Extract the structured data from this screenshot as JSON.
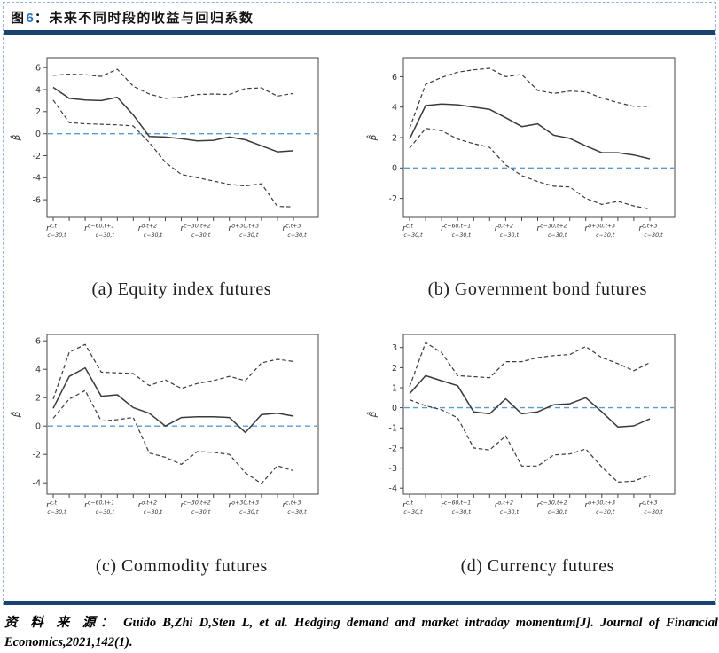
{
  "header": {
    "figure_label": "图",
    "figure_number": "6",
    "colon": "：",
    "title": "未来不同时段的收益与回归系数"
  },
  "source": {
    "label": "资 料 来 源：",
    "citation": "Guido B,Zhi D,Sten L, et al. Hedging demand and market intraday momentum[J]. Journal of Financial Economics,2021,142(1)."
  },
  "colors": {
    "accent_navy": "#1a4270",
    "figure_number_blue": "#2e74b5",
    "border_dashed_blue": "#8eb4e3",
    "zero_line_blue": "#5b9bd5",
    "series_line": "#3a3a3a"
  },
  "chart_data": [
    {
      "type": "line",
      "caption": "(a) Equity index futures",
      "ylabel": "β̂",
      "ylim": [
        -7.6,
        6.9
      ],
      "yticks": [
        -6,
        -4,
        -2,
        0,
        2,
        4,
        6
      ],
      "zero_line": 0,
      "n_points": 16,
      "xlabel_ticks": [
        0,
        3,
        6,
        9,
        12,
        15
      ],
      "xlabels": [
        {
          "base": "r",
          "sup": "c,t",
          "sub": "c−30,t"
        },
        {
          "base": "r",
          "sup": "c−60,t+1",
          "sub": "c−30,t"
        },
        {
          "base": "r",
          "sup": "o,t+2",
          "sub": "c−30,t"
        },
        {
          "base": "r",
          "sup": "c−30,t+2",
          "sub": "c−30,t"
        },
        {
          "base": "r",
          "sup": "o+30,t+3",
          "sub": "c−30,t"
        },
        {
          "base": "r",
          "sup": "c,t+3",
          "sub": "c−30,t"
        }
      ],
      "series": [
        {
          "name": "beta-estimate",
          "style": "solid",
          "values": [
            4.2,
            3.2,
            3.05,
            3.0,
            3.3,
            1.7,
            -0.25,
            -0.3,
            -0.45,
            -0.65,
            -0.6,
            -0.3,
            -0.55,
            -1.1,
            -1.65,
            -1.55
          ]
        },
        {
          "name": "upper-confidence-band",
          "style": "dashed",
          "values": [
            5.3,
            5.4,
            5.35,
            5.2,
            5.85,
            4.3,
            3.6,
            3.2,
            3.3,
            3.55,
            3.6,
            3.55,
            4.1,
            4.15,
            3.4,
            3.65
          ]
        },
        {
          "name": "lower-confidence-band",
          "style": "dashed",
          "values": [
            3.05,
            1.0,
            0.9,
            0.85,
            0.8,
            0.7,
            -0.8,
            -2.6,
            -3.7,
            -4.0,
            -4.3,
            -4.6,
            -4.75,
            -4.55,
            -6.6,
            -6.65
          ]
        }
      ]
    },
    {
      "type": "line",
      "caption": "(b) Government bond futures",
      "ylabel": "β̂",
      "ylim": [
        -3.25,
        7.25
      ],
      "yticks": [
        -2,
        0,
        2,
        4,
        6
      ],
      "zero_line": 0,
      "n_points": 16,
      "xlabel_ticks": [
        0,
        3,
        6,
        9,
        12,
        15
      ],
      "xlabels": [
        {
          "base": "r",
          "sup": "c,t",
          "sub": "c−30,t"
        },
        {
          "base": "r",
          "sup": "c−60,t+1",
          "sub": "c−30,t"
        },
        {
          "base": "r",
          "sup": "o,t+2",
          "sub": "c−30,t"
        },
        {
          "base": "r",
          "sup": "c−30,t+2",
          "sub": "c−30,t"
        },
        {
          "base": "r",
          "sup": "o+30,t+3",
          "sub": "c−30,t"
        },
        {
          "base": "r",
          "sup": "c,t+3",
          "sub": "c−30,t"
        }
      ],
      "series": [
        {
          "name": "beta-estimate",
          "style": "solid",
          "values": [
            1.9,
            4.1,
            4.2,
            4.15,
            4.0,
            3.85,
            3.3,
            2.72,
            2.9,
            2.15,
            1.95,
            1.45,
            1.0,
            1.0,
            0.85,
            0.6
          ]
        },
        {
          "name": "upper-confidence-band",
          "style": "dashed",
          "values": [
            2.6,
            5.5,
            5.95,
            6.3,
            6.45,
            6.55,
            6.0,
            6.15,
            5.1,
            4.9,
            5.05,
            5.0,
            4.6,
            4.3,
            4.05,
            4.05
          ]
        },
        {
          "name": "lower-confidence-band",
          "style": "dashed",
          "values": [
            1.3,
            2.6,
            2.45,
            1.9,
            1.6,
            1.35,
            0.2,
            -0.5,
            -0.9,
            -1.2,
            -1.25,
            -2.0,
            -2.4,
            -2.2,
            -2.5,
            -2.7
          ]
        }
      ]
    },
    {
      "type": "line",
      "caption": "(c) Commodity futures",
      "ylabel": "β̂",
      "ylim": [
        -4.8,
        6.45
      ],
      "yticks": [
        -4,
        -2,
        0,
        2,
        4,
        6
      ],
      "zero_line": 0,
      "n_points": 16,
      "xlabel_ticks": [
        0,
        3,
        6,
        9,
        12,
        15
      ],
      "xlabels": [
        {
          "base": "r",
          "sup": "c,t",
          "sub": "c−30,t"
        },
        {
          "base": "r",
          "sup": "c−60,t+1",
          "sub": "c−30,t"
        },
        {
          "base": "r",
          "sup": "o,t+2",
          "sub": "c−30,t"
        },
        {
          "base": "r",
          "sup": "c−30,t+2",
          "sub": "c−30,t"
        },
        {
          "base": "r",
          "sup": "o+30,t+3",
          "sub": "c−30,t"
        },
        {
          "base": "r",
          "sup": "c,t+3",
          "sub": "c−30,t"
        }
      ],
      "series": [
        {
          "name": "beta-estimate",
          "style": "solid",
          "values": [
            1.25,
            3.5,
            4.1,
            2.1,
            2.2,
            1.3,
            0.9,
            0.0,
            0.6,
            0.65,
            0.65,
            0.6,
            -0.45,
            0.8,
            0.9,
            0.7
          ]
        },
        {
          "name": "upper-confidence-band",
          "style": "dashed",
          "values": [
            1.9,
            5.2,
            5.75,
            3.8,
            3.75,
            3.7,
            2.85,
            3.25,
            2.65,
            3.0,
            3.2,
            3.5,
            3.2,
            4.45,
            4.7,
            4.55
          ]
        },
        {
          "name": "lower-confidence-band",
          "style": "dashed",
          "values": [
            0.55,
            1.9,
            2.5,
            0.35,
            0.45,
            0.6,
            -1.9,
            -2.2,
            -2.7,
            -1.8,
            -1.85,
            -2.0,
            -3.3,
            -4.05,
            -2.8,
            -3.15
          ]
        }
      ]
    },
    {
      "type": "line",
      "caption": "(d) Currency futures",
      "ylabel": "β̂",
      "ylim": [
        -4.3,
        3.65
      ],
      "yticks": [
        -4,
        -3,
        -2,
        -1,
        0,
        1,
        2,
        3
      ],
      "zero_line": 0,
      "n_points": 16,
      "xlabel_ticks": [
        0,
        3,
        6,
        9,
        12,
        15
      ],
      "xlabels": [
        {
          "base": "r",
          "sup": "c,t",
          "sub": "c−30,t"
        },
        {
          "base": "r",
          "sup": "c−60,t+1",
          "sub": "c−30,t"
        },
        {
          "base": "r",
          "sup": "o,t+2",
          "sub": "c−30,t"
        },
        {
          "base": "r",
          "sup": "c−30,t+2",
          "sub": "c−30,t"
        },
        {
          "base": "r",
          "sup": "o+30,t+3",
          "sub": "c−30,t"
        },
        {
          "base": "r",
          "sup": "c,t+3",
          "sub": "c−30,t"
        }
      ],
      "series": [
        {
          "name": "beta-estimate",
          "style": "solid",
          "values": [
            0.7,
            1.6,
            1.35,
            1.1,
            -0.2,
            -0.3,
            0.45,
            -0.3,
            -0.2,
            0.15,
            0.2,
            0.5,
            -0.2,
            -0.95,
            -0.9,
            -0.55
          ]
        },
        {
          "name": "upper-confidence-band",
          "style": "dashed",
          "values": [
            1.05,
            3.25,
            2.75,
            1.6,
            1.55,
            1.5,
            2.3,
            2.3,
            2.5,
            2.6,
            2.65,
            3.05,
            2.5,
            2.2,
            1.85,
            2.25
          ]
        },
        {
          "name": "lower-confidence-band",
          "style": "dashed",
          "values": [
            0.4,
            0.1,
            -0.1,
            -0.5,
            -2.0,
            -2.1,
            -1.4,
            -2.9,
            -2.9,
            -2.35,
            -2.3,
            -2.05,
            -2.95,
            -3.7,
            -3.65,
            -3.35
          ]
        }
      ]
    }
  ]
}
